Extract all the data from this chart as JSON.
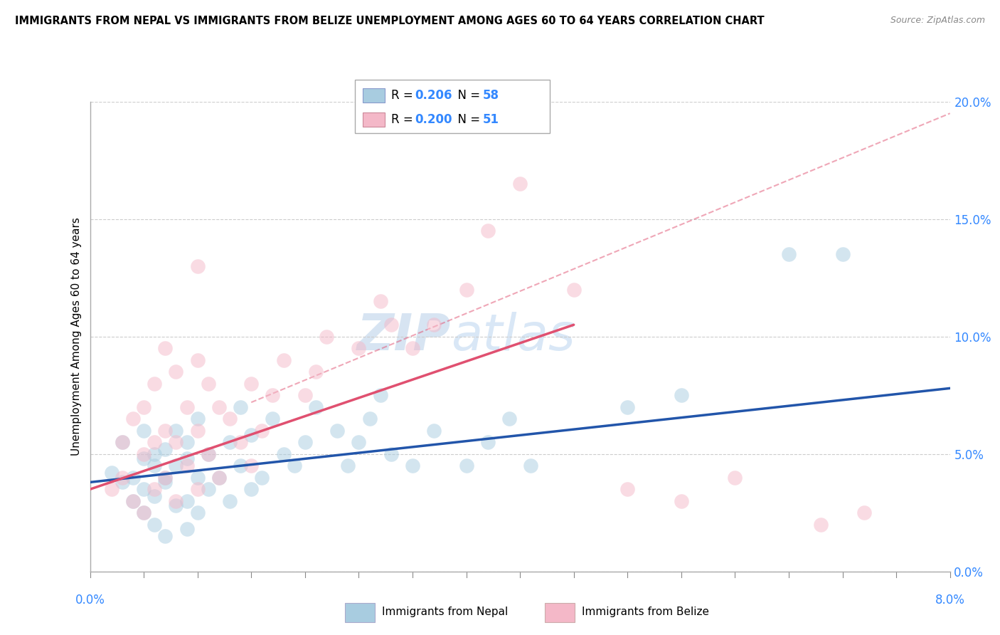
{
  "title": "IMMIGRANTS FROM NEPAL VS IMMIGRANTS FROM BELIZE UNEMPLOYMENT AMONG AGES 60 TO 64 YEARS CORRELATION CHART",
  "source": "Source: ZipAtlas.com",
  "ylabel": "Unemployment Among Ages 60 to 64 years",
  "right_ticks": [
    "0.0%",
    "5.0%",
    "10.0%",
    "15.0%",
    "20.0%"
  ],
  "right_vals": [
    0.0,
    5.0,
    10.0,
    15.0,
    20.0
  ],
  "nepal_color": "#a8cce0",
  "belize_color": "#f4b8c8",
  "nepal_line_color": "#2255aa",
  "belize_line_color": "#e05070",
  "watermark_zip": "ZIP",
  "watermark_atlas": "atlas",
  "xmin": 0.0,
  "xmax": 8.0,
  "ymin": 0.0,
  "ymax": 20.0,
  "nepal_scatter_x": [
    0.2,
    0.3,
    0.3,
    0.4,
    0.4,
    0.5,
    0.5,
    0.5,
    0.5,
    0.6,
    0.6,
    0.6,
    0.6,
    0.7,
    0.7,
    0.7,
    0.7,
    0.8,
    0.8,
    0.8,
    0.9,
    0.9,
    0.9,
    0.9,
    1.0,
    1.0,
    1.0,
    1.1,
    1.1,
    1.2,
    1.3,
    1.3,
    1.4,
    1.4,
    1.5,
    1.5,
    1.6,
    1.7,
    1.8,
    1.9,
    2.0,
    2.1,
    2.3,
    2.4,
    2.5,
    2.6,
    2.7,
    2.8,
    3.0,
    3.2,
    3.5,
    3.7,
    3.9,
    4.1,
    5.0,
    5.5,
    6.5,
    7.0
  ],
  "nepal_scatter_y": [
    4.2,
    3.8,
    5.5,
    4.0,
    3.0,
    2.5,
    4.8,
    3.5,
    6.0,
    2.0,
    3.2,
    5.0,
    4.5,
    1.5,
    3.8,
    5.2,
    4.0,
    2.8,
    4.5,
    6.0,
    1.8,
    3.0,
    4.8,
    5.5,
    2.5,
    4.0,
    6.5,
    3.5,
    5.0,
    4.0,
    3.0,
    5.5,
    4.5,
    7.0,
    3.5,
    5.8,
    4.0,
    6.5,
    5.0,
    4.5,
    5.5,
    7.0,
    6.0,
    4.5,
    5.5,
    6.5,
    7.5,
    5.0,
    4.5,
    6.0,
    4.5,
    5.5,
    6.5,
    4.5,
    7.0,
    7.5,
    13.5,
    13.5
  ],
  "belize_scatter_x": [
    0.2,
    0.3,
    0.3,
    0.4,
    0.4,
    0.5,
    0.5,
    0.5,
    0.6,
    0.6,
    0.6,
    0.7,
    0.7,
    0.7,
    0.8,
    0.8,
    0.8,
    0.9,
    0.9,
    1.0,
    1.0,
    1.0,
    1.0,
    1.1,
    1.1,
    1.2,
    1.2,
    1.3,
    1.4,
    1.5,
    1.5,
    1.6,
    1.7,
    1.8,
    2.0,
    2.1,
    2.2,
    2.5,
    2.7,
    2.8,
    3.0,
    3.2,
    3.5,
    3.7,
    4.0,
    4.5,
    5.0,
    5.5,
    6.0,
    6.8,
    7.2
  ],
  "belize_scatter_y": [
    3.5,
    4.0,
    5.5,
    3.0,
    6.5,
    2.5,
    5.0,
    7.0,
    3.5,
    5.5,
    8.0,
    4.0,
    6.0,
    9.5,
    3.0,
    5.5,
    8.5,
    4.5,
    7.0,
    3.5,
    6.0,
    9.0,
    13.0,
    5.0,
    8.0,
    4.0,
    7.0,
    6.5,
    5.5,
    4.5,
    8.0,
    6.0,
    7.5,
    9.0,
    7.5,
    8.5,
    10.0,
    9.5,
    11.5,
    10.5,
    9.5,
    10.5,
    12.0,
    14.5,
    16.5,
    12.0,
    3.5,
    3.0,
    4.0,
    2.0,
    2.5
  ],
  "nepal_trend_x": [
    0.0,
    8.0
  ],
  "nepal_trend_y": [
    3.8,
    7.8
  ],
  "belize_trend_x": [
    0.0,
    4.5
  ],
  "belize_trend_y": [
    3.5,
    10.5
  ]
}
